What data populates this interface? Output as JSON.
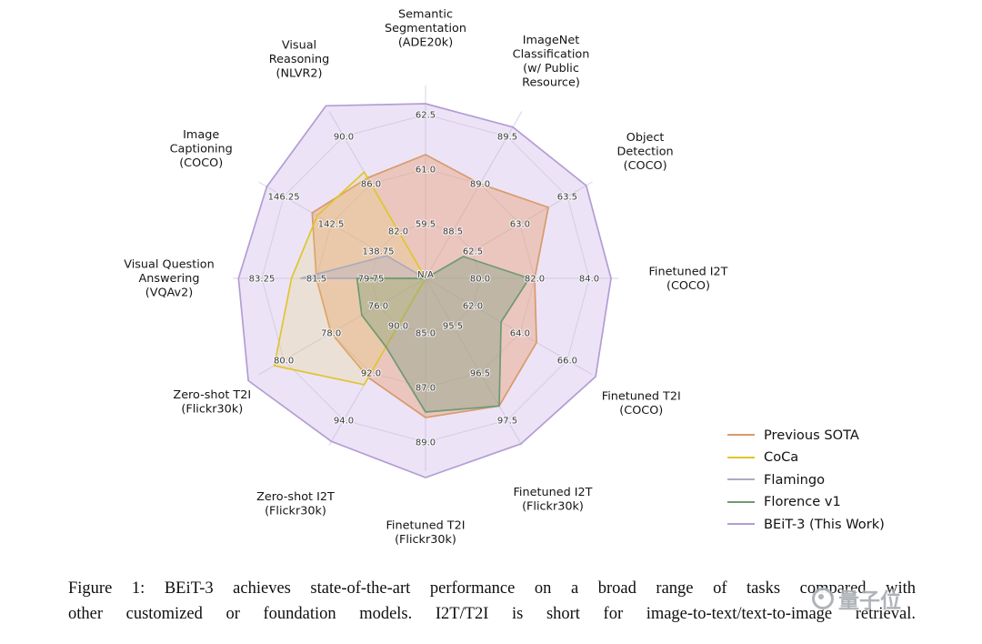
{
  "figure": {
    "caption_lines": [
      "Figure 1: BEiT-3 achieves state-of-the-art performance on a broad range of tasks compared with",
      "other customized or foundation models. I2T/T2I is short for image-to-text/text-to-image retrieval."
    ]
  },
  "watermark": {
    "text": "量子位",
    "icon": "qbitai-logo"
  },
  "chart_data": {
    "type": "radar",
    "title": "",
    "center_label": "N/A",
    "legend_position": "lower right",
    "axes": [
      {
        "label": "Semantic Segmentation (ADE20k)",
        "label_lines": [
          "Semantic",
          "Segmentation",
          "(ADE20k)"
        ],
        "ticks": [
          "59.5",
          "61.0",
          "62.5"
        ],
        "min": 58.0,
        "max": 62.5
      },
      {
        "label": "ImageNet Classification (w/ Public Resource)",
        "label_lines": [
          "ImageNet",
          "Classification",
          "(w/ Public",
          "Resource)"
        ],
        "ticks": [
          "88.5",
          "89.0",
          "89.5"
        ],
        "min": 88.0,
        "max": 89.5
      },
      {
        "label": "Object Detection (COCO)",
        "label_lines": [
          "Object",
          "Detection",
          "(COCO)"
        ],
        "ticks": [
          "62.5",
          "63.0",
          "63.5"
        ],
        "min": 62.0,
        "max": 63.5
      },
      {
        "label": "Finetuned I2T (COCO)",
        "label_lines": [
          "Finetuned I2T",
          "(COCO)"
        ],
        "ticks": [
          "80.0",
          "82.0",
          "84.0"
        ],
        "min": 78.0,
        "max": 84.0
      },
      {
        "label": "Finetuned T2I (COCO)",
        "label_lines": [
          "Finetuned T2I",
          "(COCO)"
        ],
        "ticks": [
          "62.0",
          "64.0",
          "66.0"
        ],
        "min": 60.0,
        "max": 66.0
      },
      {
        "label": "Finetuned I2T (Flickr30k)",
        "label_lines": [
          "Finetuned I2T",
          "(Flickr30k)"
        ],
        "ticks": [
          "95.5",
          "96.5",
          "97.5"
        ],
        "min": 94.5,
        "max": 97.5
      },
      {
        "label": "Finetuned T2I (Flickr30k)",
        "label_lines": [
          "Finetuned T2I",
          "(Flickr30k)"
        ],
        "ticks": [
          "85.0",
          "87.0",
          "89.0"
        ],
        "min": 83.0,
        "max": 89.0
      },
      {
        "label": "Zero-shot I2T (Flickr30k)",
        "label_lines": [
          "Zero-shot I2T",
          "(Flickr30k)"
        ],
        "ticks": [
          "90.0",
          "92.0",
          "94.0"
        ],
        "min": 88.0,
        "max": 94.0
      },
      {
        "label": "Zero-shot T2I (Flickr30k)",
        "label_lines": [
          "Zero-shot T2I",
          "(Flickr30k)"
        ],
        "ticks": [
          "76.0",
          "78.0",
          "80.0"
        ],
        "min": 74.0,
        "max": 80.0
      },
      {
        "label": "Visual Question Answering (VQAv2)",
        "label_lines": [
          "Visual Question",
          "Answering",
          "(VQAv2)"
        ],
        "ticks": [
          "79.75",
          "81.5",
          "83.25"
        ],
        "min": 78.0,
        "max": 83.25
      },
      {
        "label": "Image Captioning (COCO)",
        "label_lines": [
          "Image",
          "Captioning",
          "(COCO)"
        ],
        "ticks": [
          "138.75",
          "142.5",
          "146.25"
        ],
        "min": 135.0,
        "max": 146.25
      },
      {
        "label": "Visual Reasoning (NLVR2)",
        "label_lines": [
          "Visual",
          "Reasoning",
          "(NLVR2)"
        ],
        "ticks": [
          "82.0",
          "86.0",
          "90.0"
        ],
        "min": 78.0,
        "max": 90.0
      }
    ],
    "series": [
      {
        "name": "Previous SOTA",
        "color": "#d99a6c",
        "fill": "rgba(232,158,112,0.42)",
        "values": [
          61.4,
          89.0,
          63.3,
          82.0,
          64.7,
          97.2,
          88.1,
          92.2,
          78.0,
          81.5,
          144.0,
          86.5
        ]
      },
      {
        "name": "CoCa",
        "color": "#e0c52e",
        "fill": "rgba(236,214,90,0.20)",
        "values": [
          null,
          null,
          null,
          null,
          null,
          null,
          null,
          92.5,
          80.4,
          82.3,
          143.6,
          87.0
        ]
      },
      {
        "name": "Flamingo",
        "color": "#ababc0",
        "fill": "rgba(178,178,198,0.42)",
        "values": [
          null,
          null,
          null,
          null,
          null,
          null,
          null,
          null,
          null,
          82.0,
          138.1,
          null
        ]
      },
      {
        "name": "Florence v1",
        "color": "#6f9a73",
        "fill": "rgba(122,157,126,0.38)",
        "values": [
          null,
          null,
          62.4,
          81.8,
          63.2,
          97.2,
          87.9,
          90.9,
          76.7,
          80.2,
          null,
          null
        ]
      },
      {
        "name": "BEiT-3 (This Work)",
        "color": "#b39dd4",
        "fill": "rgba(204,182,231,0.38)",
        "values": [
          62.8,
          89.6,
          63.7,
          84.8,
          67.2,
          98.0,
          90.3,
          94.9,
          81.5,
          84.0,
          147.6,
          92.6
        ]
      }
    ],
    "draw_order": [
      4,
      0,
      1,
      2,
      3
    ]
  }
}
